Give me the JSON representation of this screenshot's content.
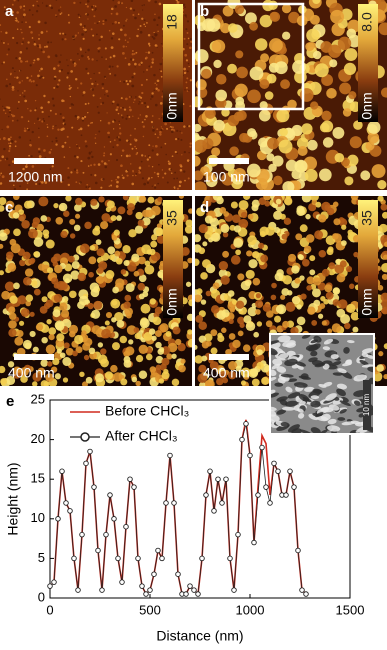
{
  "images": [
    {
      "label": "a",
      "scale_bar": "1200 nm",
      "colorbar_max": "18",
      "colorbar_min": "0nm"
    },
    {
      "label": "b",
      "scale_bar": "100 nm",
      "colorbar_max": "8.0",
      "colorbar_min": "0nm"
    },
    {
      "label": "c",
      "scale_bar": "400 nm",
      "colorbar_max": "35",
      "colorbar_min": "0nm"
    },
    {
      "label": "d",
      "scale_bar": "400 nm",
      "colorbar_max": "35",
      "colorbar_min": "0nm"
    }
  ],
  "inset_label": "10 nm",
  "chart_data": {
    "type": "line",
    "label": "e",
    "x_label": "Distance (nm)",
    "y_label": "Height (nm)",
    "xlim": [
      0,
      1500
    ],
    "xticks": [
      0,
      500,
      1000,
      1500
    ],
    "ylim": [
      0,
      25
    ],
    "yticks": [
      0,
      5,
      10,
      15,
      20,
      25
    ],
    "legend": "upper-left",
    "x": [
      0,
      20,
      40,
      60,
      80,
      100,
      120,
      140,
      160,
      180,
      200,
      220,
      240,
      260,
      280,
      300,
      320,
      340,
      360,
      380,
      400,
      420,
      440,
      460,
      480,
      500,
      520,
      540,
      560,
      580,
      600,
      620,
      640,
      660,
      680,
      700,
      720,
      740,
      760,
      780,
      800,
      820,
      840,
      860,
      880,
      900,
      920,
      940,
      960,
      980,
      1000,
      1020,
      1040,
      1060,
      1080,
      1100,
      1120,
      1140,
      1160,
      1180,
      1200,
      1220,
      1240,
      1260,
      1280
    ],
    "series": [
      {
        "name": "Before CHCl₃",
        "color": "#d02a1e",
        "marker": "none",
        "values": [
          1.5,
          2,
          10,
          16,
          12,
          11,
          5,
          1,
          8,
          17,
          18.5,
          14,
          6,
          1,
          8,
          13,
          10,
          5,
          2,
          9,
          15,
          14,
          5,
          1.5,
          0.5,
          1,
          3,
          6,
          5,
          12,
          18,
          12,
          3,
          0.5,
          0.5,
          1.5,
          1,
          0.5,
          5,
          13,
          16,
          11,
          15,
          12,
          15,
          5,
          1,
          8,
          20,
          22.5,
          18,
          7,
          14,
          20.5,
          19.5,
          13,
          17,
          16,
          13,
          13,
          16,
          14,
          6,
          1,
          0.5
        ]
      },
      {
        "name": "After CHCl₃",
        "color": "#222222",
        "marker": "circle",
        "values": [
          1.5,
          2,
          10,
          16,
          12,
          11,
          5,
          1,
          8,
          17,
          18.5,
          14,
          6,
          1,
          8,
          13,
          10,
          5,
          2,
          9,
          15,
          14,
          5,
          1.5,
          0.5,
          1,
          3,
          6,
          5,
          12,
          18,
          12,
          3,
          0.5,
          0.5,
          1.5,
          1,
          0.5,
          5,
          13,
          16,
          11,
          15,
          12,
          15,
          5,
          1,
          8,
          20,
          22,
          18,
          7,
          13,
          19,
          14,
          12,
          17,
          16,
          13,
          13,
          16,
          14,
          6,
          1,
          0.5
        ]
      }
    ]
  }
}
